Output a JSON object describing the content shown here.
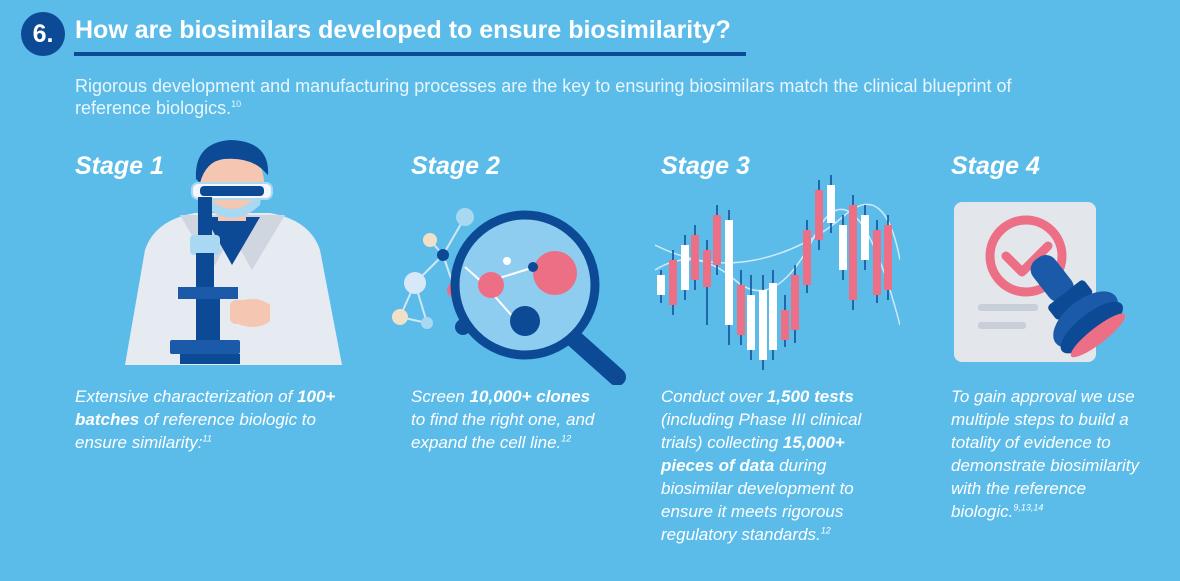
{
  "header": {
    "number": "6.",
    "title": "How are biosimilars developed to ensure biosimilarity?",
    "subtitle": "Rigorous development and manufacturing processes are the key to ensuring biosimilars match the clinical blueprint of reference biologics.",
    "subtitle_ref": "10"
  },
  "stages": [
    {
      "title": "Stage 1",
      "text": [
        {
          "t": "Extensive characterization of ",
          "b": false
        },
        {
          "t": "100+ batches",
          "b": true
        },
        {
          "t": " of reference biologic to ensure similarity:",
          "b": false
        }
      ],
      "ref": "11",
      "illustration": "scientist-microscope-illustration"
    },
    {
      "title": "Stage 2",
      "text": [
        {
          "t": "Screen ",
          "b": false
        },
        {
          "t": "10,000+ clones",
          "b": true
        },
        {
          "t": " to find the right one, and expand the cell line.",
          "b": false
        }
      ],
      "ref": "12",
      "illustration": "magnifying-glass-molecules-illustration"
    },
    {
      "title": "Stage 3",
      "text": [
        {
          "t": "Conduct over ",
          "b": false
        },
        {
          "t": "1,500 tests",
          "b": true
        },
        {
          "t": " (including Phase III clinical trials) collecting ",
          "b": false
        },
        {
          "t": "15,000+ pieces of data",
          "b": true
        },
        {
          "t": " during biosimilar development to ensure it meets rigorous regulatory standards.",
          "b": false
        }
      ],
      "ref": "12",
      "illustration": "candlestick-data-illustration"
    },
    {
      "title": "Stage 4",
      "text": [
        {
          "t": "To gain approval we use multiple steps to build a totality of evidence to demonstrate biosimilarity with the reference biologic.",
          "b": false
        }
      ],
      "ref": "9,13,14",
      "illustration": "approval-stamp-illustration"
    }
  ],
  "colors": {
    "background": "#5bbcea",
    "navy": "#0d4a96",
    "pink": "#ec6f86",
    "light_blue": "#a9d8f2",
    "white": "#ffffff"
  }
}
